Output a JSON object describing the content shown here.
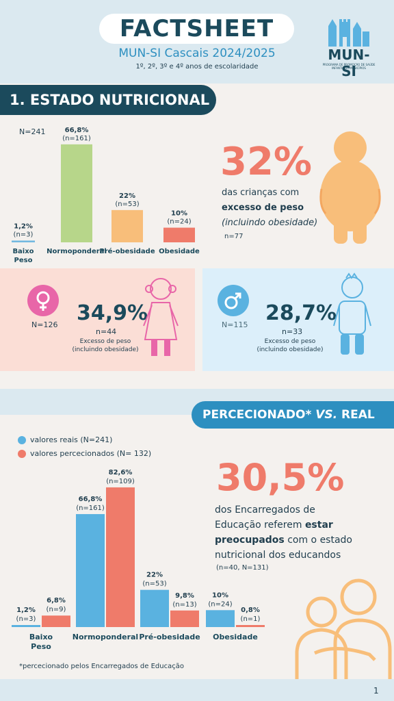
{
  "header": {
    "title": "FACTSHEET",
    "subtitle": "MUN-SI Cascais 2024/2025",
    "grades": "1º, 2º, 3º e 4º anos de escolaridade",
    "logo_text": "MUN-SI",
    "logo_sub": "PROGRAMA DE PROMOÇÃO DE SAÚDE INFANTIL DA MUNICÍPIOS"
  },
  "section1": {
    "title": "1. ESTADO NUTRICIONAL",
    "n_total": "N=241",
    "highlight_pct": "32%",
    "highlight_line1": "das crianças com",
    "highlight_line2": "excesso de peso",
    "highlight_line3": "(incluindo obesidade)",
    "highlight_n": "n=77"
  },
  "chart_data": [
    {
      "type": "bar",
      "categories": [
        "Baixo Peso",
        "Normoponderal",
        "Pré-obesidade",
        "Obesidade"
      ],
      "values": [
        1.2,
        66.8,
        22,
        10
      ],
      "value_labels": [
        "1,2%",
        "66,8%",
        "22%",
        "10%"
      ],
      "n_labels": [
        "(n=3)",
        "(n=161)",
        "(n=53)",
        "(n=24)"
      ],
      "colors": [
        "#72b8e0",
        "#b7d68a",
        "#f8be7a",
        "#ef7b6a"
      ],
      "ylim": [
        0,
        70
      ]
    },
    {
      "type": "bar",
      "categories": [
        "Baixo Peso",
        "Normoponderal",
        "Pré-obesidade",
        "Obesidade"
      ],
      "series": [
        {
          "name": "valores reais (N=241)",
          "values": [
            1.2,
            66.8,
            22,
            10
          ],
          "value_labels": [
            "1,2%",
            "66,8%",
            "22%",
            "10%"
          ],
          "n_labels": [
            "(n=3)",
            "(n=161)",
            "(n=53)",
            "(n=24)"
          ],
          "color": "#5ab2e0"
        },
        {
          "name": "valores percecionados (N= 132)",
          "values": [
            6.8,
            82.6,
            9.8,
            0.8
          ],
          "value_labels": [
            "6,8%",
            "82,6%",
            "9,8%",
            "0,8%"
          ],
          "n_labels": [
            "(n=9)",
            "(n=109)",
            "(n=13)",
            "(n=1)"
          ],
          "color": "#ef7b6a"
        }
      ],
      "ylim": [
        0,
        85
      ]
    }
  ],
  "girls": {
    "n": "N=126",
    "pct": "34,9%",
    "sub_n": "n=44",
    "line1": "Excesso de peso",
    "line2": "(incluindo obesidade)",
    "icon": "female-symbol-icon"
  },
  "boys": {
    "n": "N=115",
    "pct": "28,7%",
    "sub_n": "n=33",
    "line1": "Excesso de peso",
    "line2": "(incluindo obesidade)",
    "icon": "male-symbol-icon"
  },
  "section2": {
    "title_part1": "PERCECIONADO*",
    "title_part2": "VS.",
    "title_part3": "REAL",
    "legend_real": "valores reais (N=241)",
    "legend_perc": "valores percecionados (N= 132)",
    "highlight_pct": "30,5%",
    "text1": "dos Encarregados de",
    "text2a": "Educação referem",
    "text2b": "estar",
    "text3a": "preocupados",
    "text3b": "com o estado",
    "text4": "nutricional dos educandos",
    "highlight_n": "(n=40, N=131)",
    "footnote": "*percecionado pelos Encarregados de Educação"
  },
  "footer": {
    "page": "1"
  },
  "colors": {
    "dark_teal": "#1b4a5c",
    "blue": "#2d8fc0",
    "coral": "#ef7b6a",
    "orange": "#f8be7a",
    "green": "#b7d68a"
  }
}
